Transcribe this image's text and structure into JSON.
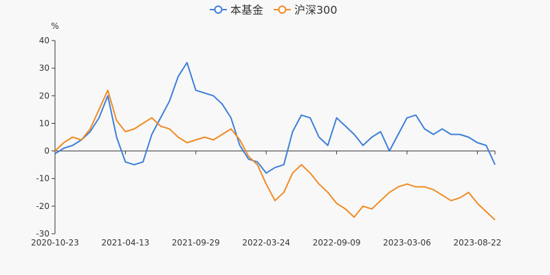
{
  "chart_data": {
    "type": "line",
    "unit_label": "%",
    "y_range": [
      -30,
      40
    ],
    "y_ticks": [
      40,
      30,
      20,
      10,
      0,
      -10,
      -20,
      -30
    ],
    "x_ticks": [
      "2020-10-23",
      "2021-04-13",
      "2021-09-29",
      "2022-03-24",
      "2022-09-09",
      "2023-03-06",
      "2023-08-22"
    ],
    "x_tick_index": [
      0,
      8,
      16,
      24,
      32,
      40,
      48
    ],
    "x_count": 51,
    "legend": {
      "placement": "top-center"
    },
    "series": [
      {
        "name": "本基金",
        "color": "#3b7fd9",
        "values": [
          -1,
          1,
          2,
          4,
          7,
          12,
          20,
          5,
          -4,
          -5,
          -4,
          6,
          12,
          18,
          27,
          32,
          22,
          21,
          20,
          17,
          12,
          2,
          -3,
          -4,
          -8,
          -6,
          -5,
          7,
          13,
          12,
          5,
          2,
          12,
          9,
          6,
          2,
          5,
          7,
          0,
          6,
          12,
          13,
          8,
          6,
          8,
          6,
          6,
          5,
          3,
          2,
          -5
        ]
      },
      {
        "name": "沪深300",
        "color": "#f08a22",
        "values": [
          0,
          3,
          5,
          4,
          8,
          15,
          22,
          11,
          7,
          8,
          10,
          12,
          9,
          8,
          5,
          3,
          4,
          5,
          4,
          6,
          8,
          4,
          -2,
          -5,
          -12,
          -18,
          -15,
          -8,
          -5,
          -8,
          -12,
          -15,
          -19,
          -21,
          -24,
          -20,
          -21,
          -18,
          -15,
          -13,
          -12,
          -13,
          -13,
          -14,
          -16,
          -18,
          -17,
          -15,
          -19,
          -22,
          -25
        ]
      }
    ]
  }
}
